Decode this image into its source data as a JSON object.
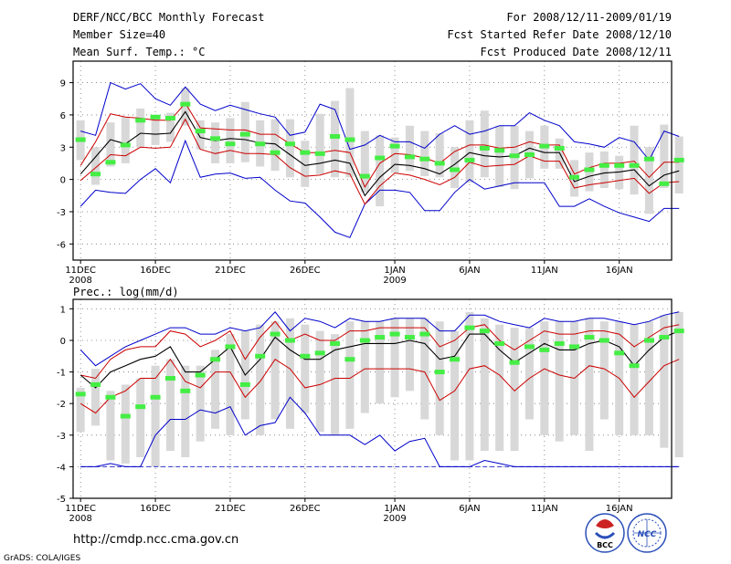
{
  "header": {
    "title": "DERF/NCC/BCC Monthly Forecast",
    "member_size": "Member Size=40",
    "variable": "Mean Surf. Temp.: °C",
    "period": "For 2008/12/11-2009/01/19",
    "fcst_started": "Fcst Started Refer Date 2008/12/10",
    "fcst_produced": "Fcst Produced Date 2008/12/11"
  },
  "footer": {
    "url": "http://cmdp.ncc.cma.gov.cn",
    "grads": "GrADS: COLA/IGES",
    "logo_bcc": "BCC",
    "logo_ncc": "NCC"
  },
  "colors": {
    "max_min": "#0000cc",
    "spread": "#cc0000",
    "mean": "#000000",
    "obs": "#44ee44",
    "box": "#d8d8d8",
    "baseline": "#3333cc"
  },
  "chart_data": [
    {
      "type": "box-line",
      "title": "Mean Surf. Temp.: °C",
      "ylim": [
        -7.5,
        11
      ],
      "yticks": [
        -6,
        -3,
        0,
        3,
        6,
        9
      ],
      "xlim": [
        0.5,
        40.5
      ],
      "xticks": [
        {
          "day": 1,
          "label": "11DEC",
          "sub": "2008"
        },
        {
          "day": 6,
          "label": "16DEC",
          "sub": ""
        },
        {
          "day": 11,
          "label": "21DEC",
          "sub": ""
        },
        {
          "day": 16,
          "label": "26DEC",
          "sub": ""
        },
        {
          "day": 22,
          "label": "1JAN",
          "sub": "2009"
        },
        {
          "day": 27,
          "label": "6JAN",
          "sub": ""
        },
        {
          "day": 32,
          "label": "11JAN",
          "sub": ""
        },
        {
          "day": 37,
          "label": "16JAN",
          "sub": ""
        }
      ],
      "box_low": [
        1.8,
        -0.5,
        1.2,
        1.5,
        3.0,
        3.2,
        3.5,
        5.0,
        2.8,
        1.5,
        1.5,
        1.6,
        1.2,
        0.8,
        0.2,
        -0.7,
        0.5,
        0.2,
        0.2,
        -1.2,
        -2.5,
        0.6,
        0.8,
        0.3,
        0.2,
        -0.8,
        -0.3,
        0.2,
        -0.7,
        -0.9,
        0.1,
        1.0,
        1.0,
        -1.6,
        -1.1,
        -0.8,
        -0.9,
        -1.4,
        -3.2,
        -0.8,
        -1.3
      ],
      "box_high": [
        5.5,
        3.0,
        5.3,
        5.8,
        6.6,
        6.0,
        6.2,
        8.5,
        5.5,
        5.3,
        5.7,
        7.2,
        5.5,
        5.6,
        5.6,
        3.6,
        6.1,
        7.3,
        8.5,
        4.5,
        4.1,
        3.9,
        5.0,
        4.5,
        4.3,
        3.0,
        5.5,
        6.4,
        5.0,
        5.0,
        4.5,
        5.0,
        3.8,
        1.8,
        2.5,
        2.6,
        2.2,
        5.0,
        3.0,
        5.1,
        4.0
      ],
      "observed": [
        3.7,
        0.5,
        1.6,
        3.2,
        5.5,
        5.8,
        5.7,
        7.0,
        4.5,
        3.8,
        3.3,
        4.2,
        3.3,
        2.5,
        3.3,
        2.5,
        2.4,
        4.0,
        3.7,
        0.3,
        2.0,
        3.1,
        2.1,
        1.9,
        1.5,
        0.9,
        1.8,
        2.9,
        2.7,
        2.2,
        2.3,
        3.1,
        2.9,
        0.2,
        0.9,
        1.3,
        1.3,
        1.3,
        1.9,
        -0.4,
        1.8
      ],
      "mean": [
        0.5,
        2.1,
        3.7,
        3.3,
        4.3,
        4.2,
        4.3,
        6.3,
        3.9,
        3.6,
        3.8,
        3.7,
        3.4,
        3.3,
        2.3,
        1.3,
        1.5,
        1.8,
        1.5,
        -1.5,
        0.2,
        1.4,
        1.3,
        1.0,
        0.5,
        1.4,
        2.5,
        2.2,
        2.1,
        2.2,
        2.9,
        2.5,
        2.5,
        -0.2,
        0.3,
        0.6,
        0.7,
        0.9,
        -0.6,
        0.4,
        0.8
      ],
      "spread_upper": [
        1.3,
        3.5,
        6.1,
        5.8,
        5.7,
        5.5,
        5.5,
        7.1,
        4.8,
        4.7,
        4.6,
        4.6,
        4.2,
        4.2,
        3.3,
        2.5,
        2.5,
        2.7,
        2.5,
        -0.7,
        1.5,
        2.4,
        2.3,
        2.0,
        1.5,
        2.6,
        3.2,
        3.2,
        2.9,
        3.0,
        3.5,
        3.2,
        3.2,
        0.5,
        1.1,
        1.5,
        1.5,
        1.7,
        0.2,
        1.6,
        1.6
      ],
      "spread_lower": [
        -0.1,
        1.1,
        2.3,
        2.2,
        3.0,
        2.9,
        3.0,
        5.6,
        2.8,
        2.4,
        2.7,
        2.4,
        2.4,
        2.3,
        1.1,
        0.3,
        0.4,
        0.8,
        0.5,
        -2.3,
        -0.6,
        0.6,
        0.4,
        0.0,
        -0.5,
        0.2,
        1.6,
        1.2,
        1.3,
        1.4,
        2.2,
        1.7,
        1.7,
        -0.8,
        -0.5,
        -0.3,
        -0.1,
        0.1,
        -1.3,
        -0.3,
        -0.2
      ],
      "maximum": [
        4.5,
        4.1,
        9.0,
        8.4,
        8.9,
        7.5,
        6.9,
        8.6,
        7.0,
        6.4,
        6.9,
        6.5,
        6.1,
        5.8,
        4.1,
        4.4,
        7.0,
        6.5,
        2.8,
        3.2,
        4.1,
        3.5,
        3.5,
        2.9,
        4.2,
        5.0,
        4.2,
        4.5,
        5.0,
        5.0,
        6.2,
        5.5,
        5.0,
        3.5,
        3.3,
        3.0,
        3.9,
        3.5,
        1.8,
        4.5,
        4.0
      ],
      "minimum": [
        -2.5,
        -1.0,
        -1.2,
        -1.3,
        0.0,
        1.0,
        -0.3,
        3.6,
        0.2,
        0.5,
        0.6,
        0.1,
        0.2,
        -1.0,
        -2.0,
        -2.2,
        -3.5,
        -4.9,
        -5.4,
        -2.3,
        -1.0,
        -1.0,
        -1.2,
        -2.9,
        -2.9,
        -1.2,
        0.0,
        -0.9,
        -0.6,
        -0.3,
        -0.3,
        -0.3,
        -2.5,
        -2.5,
        -1.8,
        -2.5,
        -3.1,
        -3.5,
        -3.9,
        -2.7,
        -2.7
      ]
    },
    {
      "type": "box-line",
      "title": "Prec.: log(mm/d)",
      "ylim": [
        -5,
        1.3
      ],
      "yticks": [
        -5,
        -4,
        -3,
        -2,
        -1,
        0,
        1
      ],
      "xlim": [
        0.5,
        40.5
      ],
      "xticks": [
        {
          "day": 1,
          "label": "11DEC",
          "sub": "2008"
        },
        {
          "day": 6,
          "label": "16DEC",
          "sub": ""
        },
        {
          "day": 11,
          "label": "21DEC",
          "sub": ""
        },
        {
          "day": 16,
          "label": "26DEC",
          "sub": ""
        },
        {
          "day": 22,
          "label": "1JAN",
          "sub": "2009"
        },
        {
          "day": 27,
          "label": "6JAN",
          "sub": ""
        },
        {
          "day": 32,
          "label": "11JAN",
          "sub": ""
        },
        {
          "day": 37,
          "label": "16JAN",
          "sub": ""
        }
      ],
      "box_low": [
        -2.9,
        -2.7,
        -3.8,
        -3.9,
        -3.7,
        -4.0,
        -3.5,
        -3.7,
        -3.2,
        -2.8,
        -3.0,
        -2.5,
        -3.0,
        -2.5,
        -2.8,
        -2.3,
        -2.9,
        -3.0,
        -2.8,
        -2.3,
        -2.0,
        -1.8,
        -1.6,
        -2.5,
        -3.0,
        -3.8,
        -3.8,
        -3.5,
        -3.5,
        -3.5,
        -2.5,
        -3.0,
        -3.2,
        -3.0,
        -3.5,
        -2.5,
        -3.0,
        -3.0,
        -3.0,
        -3.4,
        -3.7
      ],
      "box_high": [
        -1.5,
        -0.9,
        -1.6,
        -1.4,
        -1.2,
        -0.8,
        -0.6,
        -0.8,
        -0.8,
        -0.3,
        0.2,
        0.3,
        0.5,
        0.6,
        0.7,
        0.5,
        0.3,
        0.2,
        0.6,
        0.6,
        0.6,
        0.7,
        0.7,
        0.7,
        0.6,
        0.3,
        0.9,
        0.7,
        0.5,
        0.4,
        0.4,
        0.6,
        0.6,
        0.6,
        0.7,
        0.6,
        0.6,
        0.5,
        0.6,
        0.8,
        0.9
      ],
      "observed": [
        -1.7,
        -1.4,
        -1.8,
        -2.4,
        -2.1,
        -1.8,
        -1.2,
        -1.6,
        -1.1,
        -0.6,
        -0.2,
        -1.4,
        -0.5,
        0.2,
        0.0,
        -0.5,
        -0.4,
        -0.1,
        -0.6,
        0.0,
        0.1,
        0.2,
        0.1,
        0.2,
        -1.0,
        -0.6,
        0.4,
        0.3,
        -0.1,
        -0.7,
        -0.2,
        -0.3,
        -0.1,
        -0.2,
        0.1,
        0.0,
        -0.4,
        -0.8,
        0.0,
        0.1,
        0.3
      ],
      "mean": [
        -1.1,
        -1.5,
        -1.0,
        -0.8,
        -0.6,
        -0.5,
        -0.2,
        -1.0,
        -1.0,
        -0.6,
        -0.2,
        -1.1,
        -0.6,
        0.1,
        -0.3,
        -0.6,
        -0.6,
        -0.3,
        -0.2,
        -0.1,
        -0.1,
        -0.1,
        0.0,
        -0.1,
        -0.6,
        -0.5,
        0.2,
        0.2,
        -0.3,
        -0.7,
        -0.4,
        -0.1,
        -0.3,
        -0.3,
        -0.1,
        0.0,
        -0.2,
        -0.8,
        -0.3,
        0.1,
        0.3
      ],
      "spread_upper": [
        -1.1,
        -1.2,
        -0.6,
        -0.3,
        -0.2,
        -0.2,
        0.3,
        0.2,
        -0.2,
        0.0,
        0.3,
        -0.6,
        0.1,
        0.6,
        0.0,
        0.2,
        0.0,
        0.0,
        0.3,
        0.3,
        0.4,
        0.4,
        0.4,
        0.4,
        -0.2,
        0.0,
        0.4,
        0.5,
        0.0,
        -0.3,
        0.0,
        0.3,
        0.2,
        0.2,
        0.3,
        0.3,
        0.2,
        -0.2,
        0.1,
        0.4,
        0.5
      ],
      "spread_lower": [
        -2.0,
        -2.3,
        -1.8,
        -1.6,
        -1.2,
        -1.2,
        -0.6,
        -1.3,
        -1.5,
        -1.0,
        -1.0,
        -1.8,
        -1.3,
        -0.6,
        -0.9,
        -1.5,
        -1.4,
        -1.2,
        -1.2,
        -0.9,
        -0.9,
        -0.9,
        -0.9,
        -1.0,
        -1.9,
        -1.6,
        -0.9,
        -0.8,
        -1.1,
        -1.6,
        -1.2,
        -0.9,
        -1.1,
        -1.2,
        -0.8,
        -0.9,
        -1.2,
        -1.8,
        -1.3,
        -0.8,
        -0.6
      ],
      "maximum": [
        -0.3,
        -0.8,
        -0.5,
        -0.2,
        0.0,
        0.2,
        0.4,
        0.4,
        0.2,
        0.2,
        0.4,
        0.3,
        0.4,
        0.9,
        0.3,
        0.7,
        0.6,
        0.4,
        0.7,
        0.6,
        0.6,
        0.7,
        0.7,
        0.7,
        0.3,
        0.3,
        0.8,
        0.8,
        0.6,
        0.5,
        0.4,
        0.7,
        0.6,
        0.6,
        0.7,
        0.7,
        0.6,
        0.5,
        0.6,
        0.8,
        0.9
      ],
      "minimum": [
        -4.0,
        -4.0,
        -3.9,
        -4.0,
        -4.0,
        -3.0,
        -2.5,
        -2.5,
        -2.2,
        -2.3,
        -2.1,
        -3.0,
        -2.7,
        -2.6,
        -1.8,
        -2.3,
        -3.0,
        -3.0,
        -3.0,
        -3.3,
        -3.0,
        -3.5,
        -3.2,
        -3.1,
        -4.0,
        -4.0,
        -4.0,
        -3.8,
        -3.9,
        -4.0,
        -4.0,
        -4.0,
        -4.0,
        -4.0,
        -4.0,
        -4.0,
        -4.0,
        -4.0,
        -4.0,
        -4.0,
        -4.0
      ],
      "baseline": -4.0
    }
  ]
}
